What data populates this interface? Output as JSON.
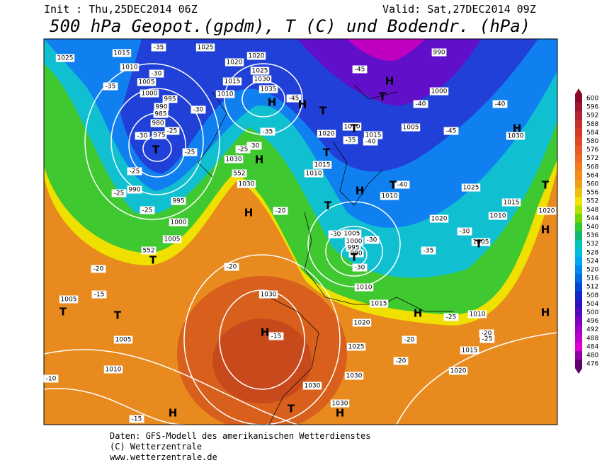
{
  "header": {
    "init": "Init : Thu,25DEC2014 06Z",
    "valid": "Valid: Sat,27DEC2014 09Z",
    "title": "500 hPa Geopot.(gpdm), T (C) und Bodendr. (hPa)"
  },
  "footer": [
    "Daten: GFS-Modell des amerikanischen Wetterdienstes",
    "(C) Wetterzentrale",
    "www.wetterzentrale.de"
  ],
  "legend": {
    "levels": [
      600,
      596,
      592,
      588,
      584,
      580,
      576,
      572,
      568,
      564,
      560,
      556,
      552,
      548,
      544,
      540,
      536,
      532,
      528,
      524,
      520,
      516,
      512,
      508,
      504,
      500,
      496,
      492,
      488,
      484,
      480,
      476
    ]
  },
  "map": {
    "pressure_labels": [
      "1025",
      "1015",
      "1010",
      "1005",
      "1000",
      "995",
      "990",
      "985",
      "980",
      "975",
      "990",
      "995",
      "1000",
      "1005",
      "1025",
      "1020",
      "1020",
      "1025",
      "1030",
      "1015",
      "1035",
      "1010",
      "1030",
      "1030",
      "1020",
      "1010",
      "1015",
      "1015",
      "1010",
      "1010",
      "1005",
      "1000",
      "995",
      "990",
      "1010",
      "1015",
      "990",
      "1000",
      "1005",
      "1030",
      "1025",
      "1015",
      "1010",
      "1020",
      "1020",
      "1005",
      "1010",
      "1030",
      "1020",
      "1025",
      "1030",
      "1030",
      "1030",
      "1015",
      "1020",
      "1005",
      "1005",
      "1010",
      "552",
      "552"
    ],
    "temperature_labels": [
      "-35",
      "-30",
      "-35",
      "-30",
      "-25",
      "-30",
      "-25",
      "-25",
      "-25",
      "-25",
      "-30",
      "-25",
      "-35",
      "-45",
      "-45",
      "-40",
      "-40",
      "-45",
      "-40",
      "-40",
      "-20",
      "-30",
      "-30",
      "-30",
      "-35",
      "-30",
      "-20",
      "-20",
      "-15",
      "-15",
      "-20",
      "-20",
      "-25",
      "-20",
      "-25",
      "-10",
      "-15",
      "-35"
    ],
    "markers": [
      "T",
      "H",
      "H",
      "T",
      "T",
      "H",
      "H",
      "T",
      "H",
      "T",
      "T",
      "T",
      "H",
      "H",
      "T",
      "H",
      "T",
      "T",
      "T",
      "T",
      "H",
      "H",
      "H",
      "H",
      "T",
      "H",
      "T"
    ]
  }
}
